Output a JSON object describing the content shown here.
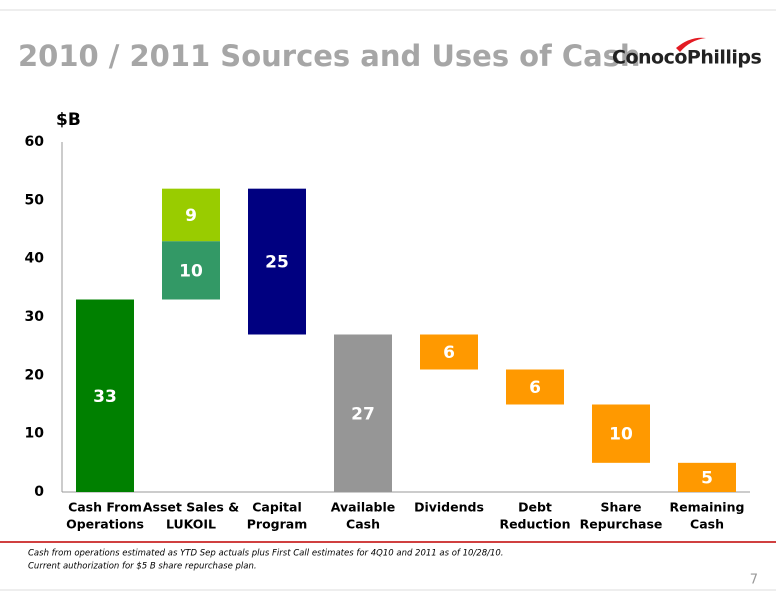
{
  "header": {
    "title": "2010 / 2011 Sources and Uses of Cash",
    "logo": "ConocoPhillips"
  },
  "chart_data": {
    "type": "waterfall",
    "y_label": "$B",
    "categories": [
      [
        "Cash From",
        "Operations"
      ],
      [
        "Asset Sales &",
        "LUKOIL"
      ],
      [
        "Capital",
        "Program"
      ],
      [
        "Available",
        "Cash"
      ],
      [
        "Dividends"
      ],
      [
        "Debt",
        "Reduction"
      ],
      [
        "Share",
        "Repurchase"
      ],
      [
        "Remaining",
        "Cash"
      ]
    ],
    "steps": [
      {
        "kind": "increase",
        "values": [
          33
        ],
        "colors": [
          "#008000"
        ]
      },
      {
        "kind": "increase",
        "values": [
          10,
          9
        ],
        "colors": [
          "#339966",
          "#99cc00"
        ]
      },
      {
        "kind": "decrease",
        "values": [
          25
        ],
        "colors": [
          "#000080"
        ]
      },
      {
        "kind": "total",
        "values": [
          27
        ],
        "colors": [
          "#969696"
        ]
      },
      {
        "kind": "decrease",
        "values": [
          6
        ],
        "colors": [
          "#ff9900"
        ]
      },
      {
        "kind": "decrease",
        "values": [
          6
        ],
        "colors": [
          "#ff9900"
        ]
      },
      {
        "kind": "decrease",
        "values": [
          10
        ],
        "colors": [
          "#ff9900"
        ]
      },
      {
        "kind": "total",
        "values": [
          5
        ],
        "colors": [
          "#ff9900"
        ]
      }
    ],
    "ylim": [
      0,
      60
    ],
    "yticks": [
      0,
      10,
      20,
      30,
      40,
      50,
      60
    ]
  },
  "footnotes": [
    "Cash from operations estimated as YTD Sep actuals plus First Call estimates for 4Q10 and 2011 as of 10/28/10.",
    "Current authorization for $5 B share repurchase plan."
  ],
  "page_number": "7"
}
